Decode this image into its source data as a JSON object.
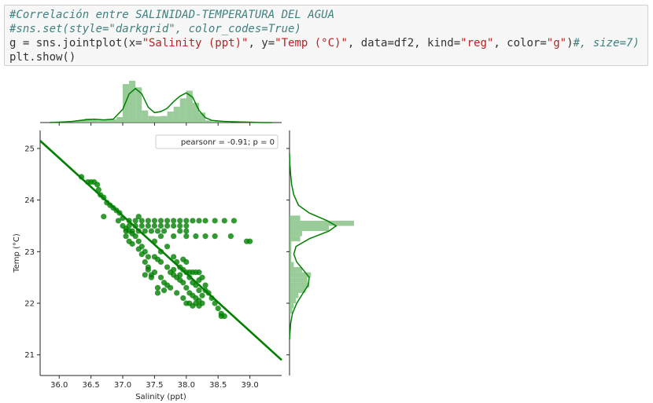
{
  "code_cell": {
    "line1": "#Correlación entre SALINIDAD-TEMPERATURA DEL AGUA",
    "line2": "#sns.set(style=\"darkgrid\", color_codes=True)",
    "line3": {
      "p1": "g = sns.jointplot(x=",
      "s1": "\"Salinity (ppt)\"",
      "p2": ", y=",
      "s2": "\"Temp (°C)\"",
      "p3": ", data=df2, kind=",
      "s3": "\"reg\"",
      "p4": ", color=",
      "s4": "\"g\"",
      "p5": ")",
      "c1": "#, size=7)"
    },
    "line4": "plt.show()"
  },
  "chart_data": {
    "type": "scatter",
    "kind": "jointplot-reg",
    "xlabel": "Salinity (ppt)",
    "ylabel": "Temp (°C)",
    "xlim": [
      35.7,
      39.5
    ],
    "ylim": [
      20.6,
      25.35
    ],
    "xticks": [
      "36.0",
      "36.5",
      "37.0",
      "37.5",
      "38.0",
      "38.5",
      "39.0"
    ],
    "yticks": [
      "21",
      "22",
      "23",
      "24",
      "25"
    ],
    "legend": "pearsonr = -0.91; p = 0",
    "legend_position": "top-right",
    "colors": {
      "points": "#008000",
      "line": "#008000",
      "hist": "#7fbf7f"
    },
    "regression": {
      "x": [
        35.7,
        39.5
      ],
      "y": [
        25.15,
        20.9
      ]
    },
    "scatter_series": [
      {
        "x": 36.35,
        "y": 24.45
      },
      {
        "x": 36.45,
        "y": 24.35
      },
      {
        "x": 36.5,
        "y": 24.35
      },
      {
        "x": 36.55,
        "y": 24.35
      },
      {
        "x": 36.6,
        "y": 24.3
      },
      {
        "x": 36.62,
        "y": 24.2
      },
      {
        "x": 36.65,
        "y": 24.1
      },
      {
        "x": 36.7,
        "y": 24.05
      },
      {
        "x": 36.75,
        "y": 23.95
      },
      {
        "x": 36.8,
        "y": 23.9
      },
      {
        "x": 36.85,
        "y": 23.85
      },
      {
        "x": 36.9,
        "y": 23.8
      },
      {
        "x": 36.95,
        "y": 23.75
      },
      {
        "x": 36.93,
        "y": 23.6
      },
      {
        "x": 37.0,
        "y": 23.65
      },
      {
        "x": 36.7,
        "y": 23.68
      },
      {
        "x": 37.0,
        "y": 23.5
      },
      {
        "x": 37.05,
        "y": 23.45
      },
      {
        "x": 37.1,
        "y": 23.4
      },
      {
        "x": 37.15,
        "y": 23.35
      },
      {
        "x": 37.2,
        "y": 23.3
      },
      {
        "x": 37.25,
        "y": 23.2
      },
      {
        "x": 37.3,
        "y": 23.1
      },
      {
        "x": 37.35,
        "y": 23.0
      },
      {
        "x": 37.4,
        "y": 22.9
      },
      {
        "x": 37.35,
        "y": 22.8
      },
      {
        "x": 37.4,
        "y": 22.7
      },
      {
        "x": 37.5,
        "y": 22.9
      },
      {
        "x": 37.55,
        "y": 22.85
      },
      {
        "x": 37.6,
        "y": 22.8
      },
      {
        "x": 37.7,
        "y": 22.7
      },
      {
        "x": 37.75,
        "y": 22.6
      },
      {
        "x": 37.8,
        "y": 22.55
      },
      {
        "x": 37.85,
        "y": 22.5
      },
      {
        "x": 37.9,
        "y": 22.45
      },
      {
        "x": 37.95,
        "y": 22.4
      },
      {
        "x": 38.0,
        "y": 22.3
      },
      {
        "x": 38.05,
        "y": 22.2
      },
      {
        "x": 38.1,
        "y": 22.15
      },
      {
        "x": 38.15,
        "y": 22.1
      },
      {
        "x": 38.2,
        "y": 22.05
      },
      {
        "x": 37.6,
        "y": 22.5
      },
      {
        "x": 37.65,
        "y": 22.4
      },
      {
        "x": 37.7,
        "y": 22.35
      },
      {
        "x": 37.5,
        "y": 22.6
      },
      {
        "x": 37.55,
        "y": 22.3
      },
      {
        "x": 37.95,
        "y": 22.65
      },
      {
        "x": 38.0,
        "y": 22.6
      },
      {
        "x": 38.05,
        "y": 22.6
      },
      {
        "x": 38.1,
        "y": 22.6
      },
      {
        "x": 38.15,
        "y": 22.6
      },
      {
        "x": 38.2,
        "y": 22.6
      },
      {
        "x": 38.25,
        "y": 22.5
      },
      {
        "x": 38.3,
        "y": 22.35
      },
      {
        "x": 38.35,
        "y": 22.2
      },
      {
        "x": 38.4,
        "y": 22.1
      },
      {
        "x": 38.45,
        "y": 22.0
      },
      {
        "x": 38.5,
        "y": 21.9
      },
      {
        "x": 38.55,
        "y": 21.8
      },
      {
        "x": 38.6,
        "y": 21.75
      },
      {
        "x": 38.55,
        "y": 21.75
      },
      {
        "x": 38.25,
        "y": 22.15
      },
      {
        "x": 38.2,
        "y": 22.25
      },
      {
        "x": 38.1,
        "y": 22.4
      },
      {
        "x": 37.9,
        "y": 22.7
      },
      {
        "x": 37.85,
        "y": 22.8
      },
      {
        "x": 37.95,
        "y": 22.85
      },
      {
        "x": 38.0,
        "y": 22.8
      },
      {
        "x": 37.8,
        "y": 22.9
      },
      {
        "x": 38.25,
        "y": 22.0
      },
      {
        "x": 38.2,
        "y": 21.95
      },
      {
        "x": 38.15,
        "y": 22.0
      },
      {
        "x": 38.05,
        "y": 22.0
      },
      {
        "x": 37.4,
        "y": 22.65
      },
      {
        "x": 37.45,
        "y": 22.55
      },
      {
        "x": 37.3,
        "y": 22.95
      },
      {
        "x": 37.25,
        "y": 23.05
      },
      {
        "x": 37.15,
        "y": 23.15
      },
      {
        "x": 37.1,
        "y": 23.2
      },
      {
        "x": 37.05,
        "y": 23.3
      },
      {
        "x": 37.1,
        "y": 23.6
      },
      {
        "x": 37.2,
        "y": 23.6
      },
      {
        "x": 37.3,
        "y": 23.6
      },
      {
        "x": 37.4,
        "y": 23.6
      },
      {
        "x": 37.5,
        "y": 23.6
      },
      {
        "x": 37.6,
        "y": 23.6
      },
      {
        "x": 37.7,
        "y": 23.6
      },
      {
        "x": 37.8,
        "y": 23.6
      },
      {
        "x": 37.9,
        "y": 23.6
      },
      {
        "x": 38.0,
        "y": 23.6
      },
      {
        "x": 38.1,
        "y": 23.6
      },
      {
        "x": 38.2,
        "y": 23.6
      },
      {
        "x": 38.3,
        "y": 23.6
      },
      {
        "x": 38.45,
        "y": 23.6
      },
      {
        "x": 38.6,
        "y": 23.6
      },
      {
        "x": 38.75,
        "y": 23.6
      },
      {
        "x": 37.25,
        "y": 23.68
      },
      {
        "x": 37.1,
        "y": 23.5
      },
      {
        "x": 37.2,
        "y": 23.5
      },
      {
        "x": 37.3,
        "y": 23.5
      },
      {
        "x": 37.4,
        "y": 23.5
      },
      {
        "x": 37.5,
        "y": 23.5
      },
      {
        "x": 37.6,
        "y": 23.5
      },
      {
        "x": 37.7,
        "y": 23.5
      },
      {
        "x": 37.8,
        "y": 23.5
      },
      {
        "x": 37.9,
        "y": 23.5
      },
      {
        "x": 38.0,
        "y": 23.5
      },
      {
        "x": 37.05,
        "y": 23.4
      },
      {
        "x": 37.15,
        "y": 23.4
      },
      {
        "x": 37.25,
        "y": 23.4
      },
      {
        "x": 37.35,
        "y": 23.4
      },
      {
        "x": 37.45,
        "y": 23.4
      },
      {
        "x": 37.55,
        "y": 23.4
      },
      {
        "x": 37.65,
        "y": 23.4
      },
      {
        "x": 37.9,
        "y": 23.4
      },
      {
        "x": 38.0,
        "y": 23.4
      },
      {
        "x": 37.6,
        "y": 23.3
      },
      {
        "x": 37.8,
        "y": 23.3
      },
      {
        "x": 38.0,
        "y": 23.3
      },
      {
        "x": 38.15,
        "y": 23.3
      },
      {
        "x": 38.3,
        "y": 23.3
      },
      {
        "x": 38.45,
        "y": 23.3
      },
      {
        "x": 38.7,
        "y": 23.3
      },
      {
        "x": 38.95,
        "y": 23.2
      },
      {
        "x": 39.0,
        "y": 23.2
      },
      {
        "x": 37.5,
        "y": 23.2
      },
      {
        "x": 37.7,
        "y": 23.1
      },
      {
        "x": 37.6,
        "y": 23.0
      },
      {
        "x": 37.45,
        "y": 22.5
      },
      {
        "x": 37.55,
        "y": 22.2
      },
      {
        "x": 37.35,
        "y": 22.55
      },
      {
        "x": 37.65,
        "y": 22.25
      },
      {
        "x": 37.75,
        "y": 22.3
      },
      {
        "x": 37.85,
        "y": 22.2
      },
      {
        "x": 37.95,
        "y": 22.1
      },
      {
        "x": 38.0,
        "y": 22.0
      },
      {
        "x": 38.1,
        "y": 21.95
      },
      {
        "x": 38.2,
        "y": 22.45
      },
      {
        "x": 38.15,
        "y": 22.35
      },
      {
        "x": 38.05,
        "y": 22.5
      },
      {
        "x": 37.9,
        "y": 22.55
      },
      {
        "x": 37.8,
        "y": 22.65
      },
      {
        "x": 38.3,
        "y": 22.25
      }
    ],
    "marginal_x_hist": [
      {
        "x0": 36.0,
        "x1": 36.1,
        "density": 0.05
      },
      {
        "x0": 36.1,
        "x1": 36.2,
        "density": 0.03
      },
      {
        "x0": 36.2,
        "x1": 36.3,
        "density": 0.05
      },
      {
        "x0": 36.3,
        "x1": 36.4,
        "density": 0.12
      },
      {
        "x0": 36.4,
        "x1": 36.5,
        "density": 0.18
      },
      {
        "x0": 36.5,
        "x1": 36.6,
        "density": 0.15
      },
      {
        "x0": 36.6,
        "x1": 36.7,
        "density": 0.1
      },
      {
        "x0": 36.7,
        "x1": 36.8,
        "density": 0.12
      },
      {
        "x0": 36.8,
        "x1": 36.9,
        "density": 0.15
      },
      {
        "x0": 36.9,
        "x1": 37.0,
        "density": 0.25
      },
      {
        "x0": 37.0,
        "x1": 37.1,
        "density": 1.75
      },
      {
        "x0": 37.1,
        "x1": 37.2,
        "density": 1.9
      },
      {
        "x0": 37.2,
        "x1": 37.3,
        "density": 1.6
      },
      {
        "x0": 37.3,
        "x1": 37.4,
        "density": 0.55
      },
      {
        "x0": 37.4,
        "x1": 37.5,
        "density": 0.3
      },
      {
        "x0": 37.5,
        "x1": 37.6,
        "density": 0.28
      },
      {
        "x0": 37.6,
        "x1": 37.7,
        "density": 0.3
      },
      {
        "x0": 37.7,
        "x1": 37.8,
        "density": 0.5
      },
      {
        "x0": 37.8,
        "x1": 37.9,
        "density": 0.72
      },
      {
        "x0": 37.9,
        "x1": 38.0,
        "density": 1.1
      },
      {
        "x0": 38.0,
        "x1": 38.1,
        "density": 1.45
      },
      {
        "x0": 38.1,
        "x1": 38.2,
        "density": 0.9
      },
      {
        "x0": 38.2,
        "x1": 38.3,
        "density": 0.45
      },
      {
        "x0": 38.3,
        "x1": 38.4,
        "density": 0.1
      },
      {
        "x0": 38.4,
        "x1": 38.5,
        "density": 0.06
      },
      {
        "x0": 38.5,
        "x1": 38.6,
        "density": 0.05
      },
      {
        "x0": 38.6,
        "x1": 38.7,
        "density": 0.04
      },
      {
        "x0": 38.9,
        "x1": 39.0,
        "density": 0.03
      }
    ],
    "marginal_x_kde": {
      "x": [
        35.85,
        36.0,
        36.2,
        36.4,
        36.55,
        36.7,
        36.85,
        37.0,
        37.1,
        37.2,
        37.3,
        37.4,
        37.5,
        37.6,
        37.7,
        37.8,
        37.9,
        38.0,
        38.1,
        38.2,
        38.3,
        38.4,
        38.6,
        38.8,
        39.0,
        39.2,
        39.35
      ],
      "density": [
        0.0,
        0.02,
        0.05,
        0.12,
        0.15,
        0.12,
        0.15,
        0.6,
        1.3,
        1.55,
        1.3,
        0.7,
        0.45,
        0.5,
        0.65,
        0.95,
        1.2,
        1.35,
        1.15,
        0.55,
        0.22,
        0.1,
        0.05,
        0.03,
        0.02,
        0.0,
        0.0
      ]
    },
    "marginal_y_hist": [
      {
        "y0": 21.8,
        "y1": 21.9,
        "density": 0.08
      },
      {
        "y0": 21.9,
        "y1": 22.0,
        "density": 0.12
      },
      {
        "y0": 22.0,
        "y1": 22.1,
        "density": 0.18
      },
      {
        "y0": 22.1,
        "y1": 22.2,
        "density": 0.25
      },
      {
        "y0": 22.2,
        "y1": 22.3,
        "density": 0.45
      },
      {
        "y0": 22.3,
        "y1": 22.4,
        "density": 0.55
      },
      {
        "y0": 22.4,
        "y1": 22.5,
        "density": 0.5
      },
      {
        "y0": 22.5,
        "y1": 22.6,
        "density": 0.6
      },
      {
        "y0": 22.6,
        "y1": 22.7,
        "density": 0.35
      },
      {
        "y0": 22.7,
        "y1": 22.8,
        "density": 0.12
      },
      {
        "y0": 22.8,
        "y1": 22.9,
        "density": 0.05
      },
      {
        "y0": 22.9,
        "y1": 23.0,
        "density": 0.05
      },
      {
        "y0": 23.0,
        "y1": 23.1,
        "density": 0.05
      },
      {
        "y0": 23.1,
        "y1": 23.2,
        "density": 0.05
      },
      {
        "y0": 23.2,
        "y1": 23.3,
        "density": 0.3
      },
      {
        "y0": 23.3,
        "y1": 23.4,
        "density": 0.35
      },
      {
        "y0": 23.4,
        "y1": 23.5,
        "density": 1.1
      },
      {
        "y0": 23.5,
        "y1": 23.6,
        "density": 1.8
      },
      {
        "y0": 23.6,
        "y1": 23.7,
        "density": 0.3
      }
    ],
    "marginal_y_kde": {
      "y": [
        21.3,
        21.6,
        21.8,
        22.0,
        22.2,
        22.35,
        22.5,
        22.65,
        22.8,
        22.95,
        23.1,
        23.25,
        23.4,
        23.5,
        23.6,
        23.75,
        23.9,
        24.1,
        24.3,
        24.5,
        24.7,
        24.9
      ],
      "density": [
        0.0,
        0.03,
        0.08,
        0.2,
        0.38,
        0.52,
        0.55,
        0.38,
        0.2,
        0.12,
        0.18,
        0.55,
        1.1,
        1.3,
        1.05,
        0.55,
        0.25,
        0.12,
        0.06,
        0.03,
        0.01,
        0.0
      ]
    }
  }
}
